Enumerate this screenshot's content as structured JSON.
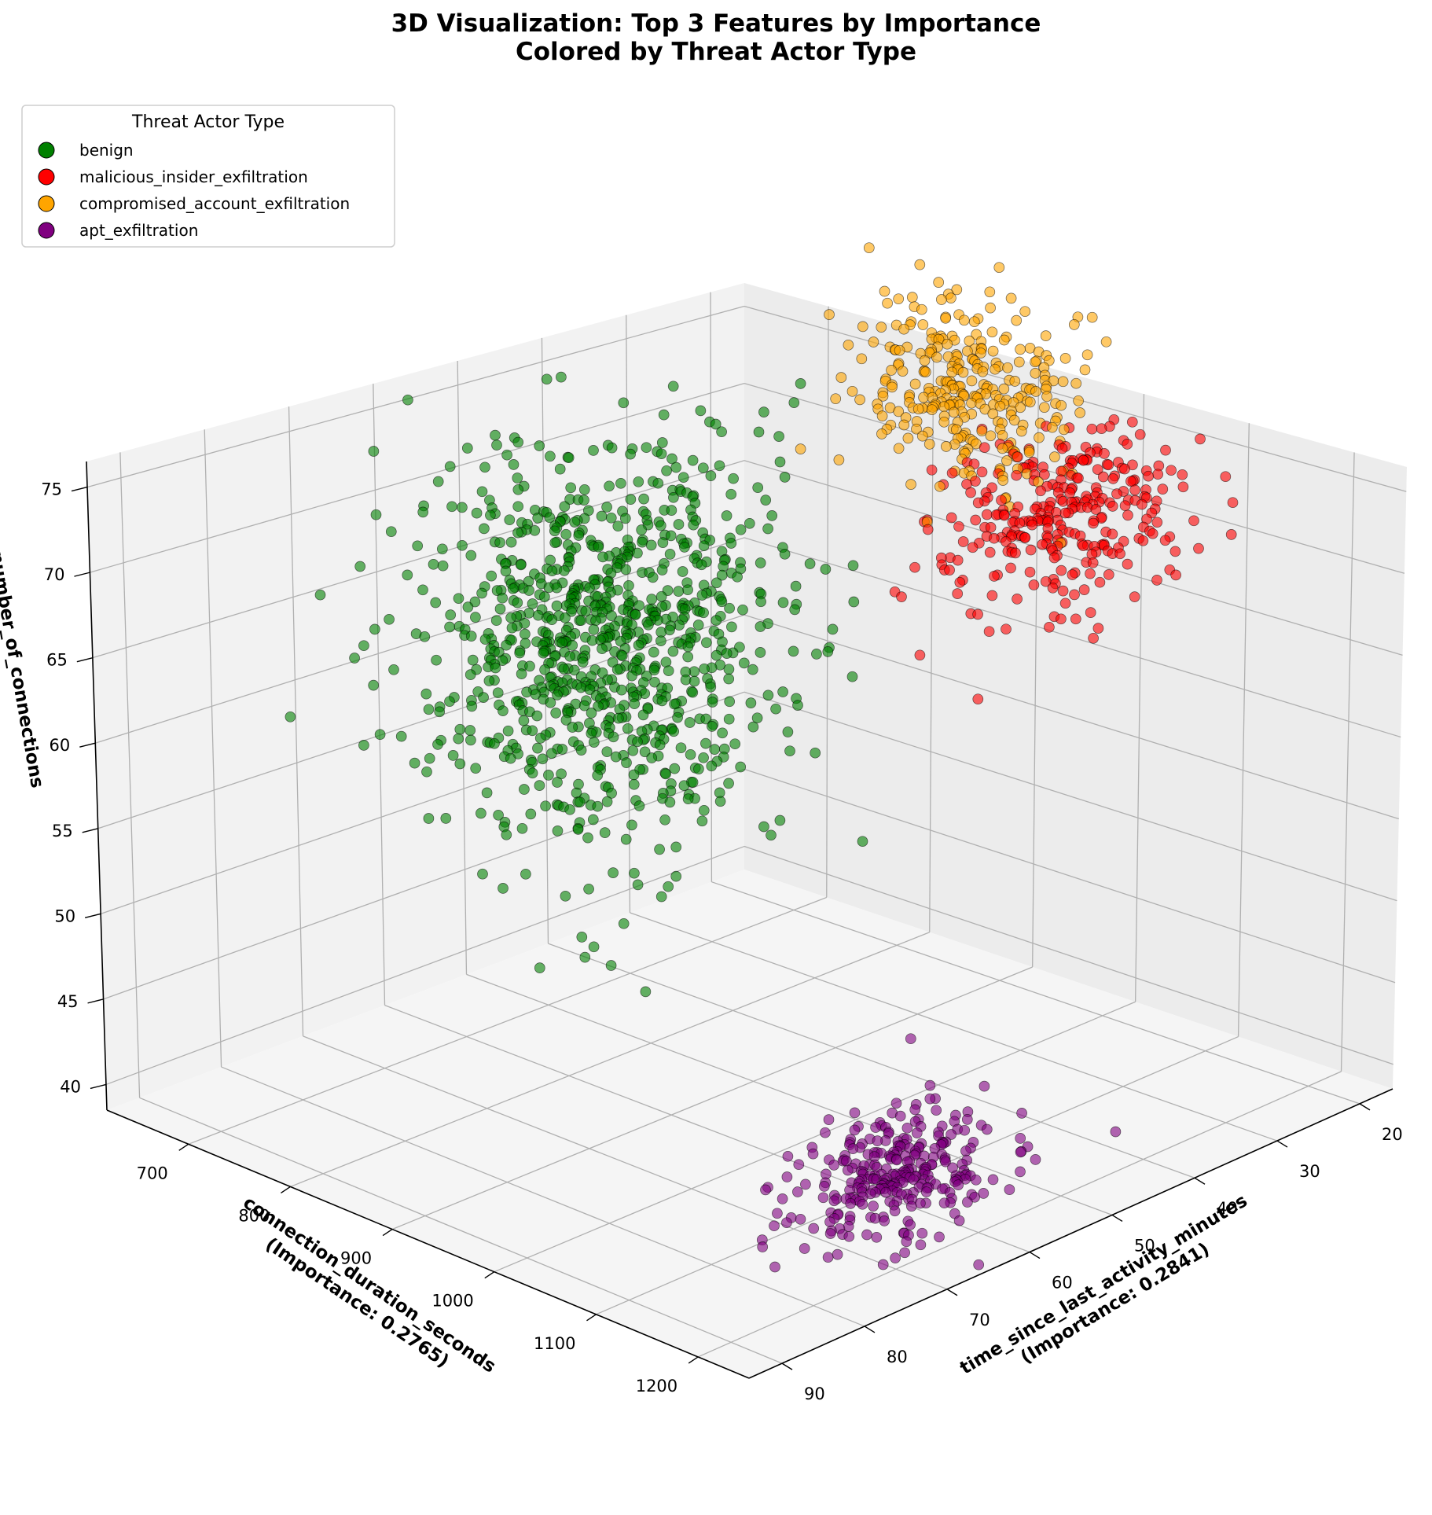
{
  "chart_data": {
    "type": "scatter",
    "projection": "3d",
    "title": [
      "3D Visualization: Top 3 Features by Importance",
      "Colored by Threat Actor Type"
    ],
    "x_axis": {
      "label": [
        "connection_duration_seconds",
        "(Importance: 0.2765)"
      ],
      "range": [
        620,
        1250
      ],
      "ticks": [
        700,
        800,
        900,
        1000,
        1100,
        1200
      ]
    },
    "y_axis": {
      "label": [
        "time_since_last_activity_minutes",
        "(Importance: 0.2841)"
      ],
      "range": [
        16,
        94
      ],
      "ticks": [
        20,
        30,
        40,
        50,
        60,
        70,
        80,
        90
      ]
    },
    "z_axis": {
      "label": [
        "number_of_connections"
      ],
      "range": [
        38.5,
        76.5
      ],
      "ticks": [
        40,
        45,
        50,
        55,
        60,
        65,
        70,
        75
      ]
    },
    "grid": true,
    "legend": {
      "title": "Threat Actor Type",
      "placement": "top-left"
    },
    "series": [
      {
        "name": "benign",
        "color": "#008000",
        "cluster": {
          "x_center": 820,
          "x_spread": 60,
          "y_center": 58,
          "y_spread": 9,
          "z_center": 62,
          "z_spread": 5,
          "points": 900
        }
      },
      {
        "name": "malicious_insider_exfiltration",
        "color": "#ff0000",
        "cluster": {
          "x_center": 1120,
          "x_spread": 35,
          "y_center": 40,
          "y_spread": 6,
          "z_center": 72,
          "z_spread": 2.3,
          "points": 300
        }
      },
      {
        "name": "compromised_account_exfiltration",
        "color": "#ffa500",
        "cluster": {
          "x_center": 930,
          "x_spread": 50,
          "y_center": 28,
          "y_spread": 4,
          "z_center": 72,
          "z_spread": 2.2,
          "points": 300
        }
      },
      {
        "name": "apt_exfiltration",
        "color": "#800080",
        "cluster": {
          "x_center": 1190,
          "x_spread": 25,
          "y_center": 68,
          "y_spread": 6,
          "z_center": 43,
          "z_spread": 1.4,
          "points": 300
        }
      }
    ]
  }
}
